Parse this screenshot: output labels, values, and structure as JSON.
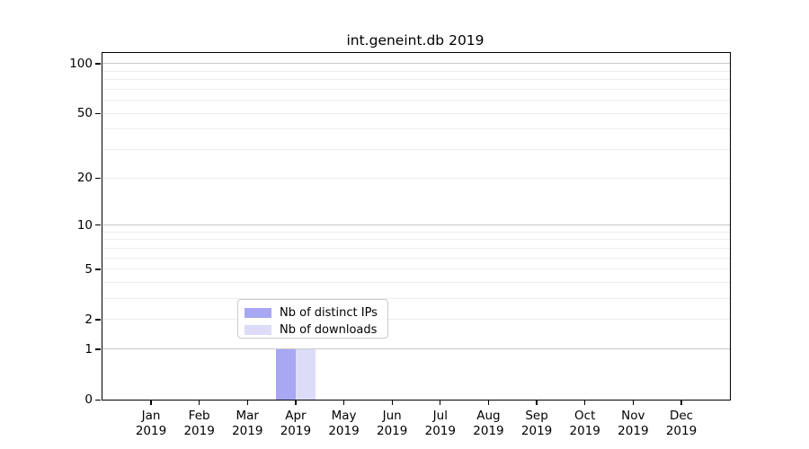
{
  "chart_data": {
    "type": "bar",
    "title": "int.geneint.db 2019",
    "xlabel": "",
    "ylabel": "",
    "year": "2019",
    "categories": [
      "Jan",
      "Feb",
      "Mar",
      "Apr",
      "May",
      "Jun",
      "Jul",
      "Aug",
      "Sep",
      "Oct",
      "Nov",
      "Dec"
    ],
    "series": [
      {
        "name": "Nb of distinct IPs",
        "color": "#a7a7f3",
        "values": [
          0,
          0,
          0,
          1,
          0,
          0,
          0,
          0,
          0,
          0,
          0,
          0
        ]
      },
      {
        "name": "Nb of downloads",
        "color": "#dcdcf8",
        "values": [
          0,
          0,
          0,
          1,
          0,
          0,
          0,
          0,
          0,
          0,
          0,
          0
        ]
      }
    ],
    "yscale": "log1p",
    "ylim": [
      0,
      116
    ],
    "yticks": [
      0,
      1,
      2,
      5,
      10,
      20,
      50,
      100
    ],
    "major_gridlines": [
      1,
      10,
      100
    ],
    "minor_gridlines": [
      2,
      3,
      4,
      5,
      6,
      7,
      8,
      9,
      20,
      30,
      40,
      50,
      60,
      70,
      80,
      90
    ],
    "grid": "on",
    "legend_position": "lower center (inside axes)",
    "colors": {
      "major_grid": "#c9c9c9",
      "minor_grid": "#ededed",
      "axis": "#000000",
      "background": "#ffffff"
    }
  }
}
